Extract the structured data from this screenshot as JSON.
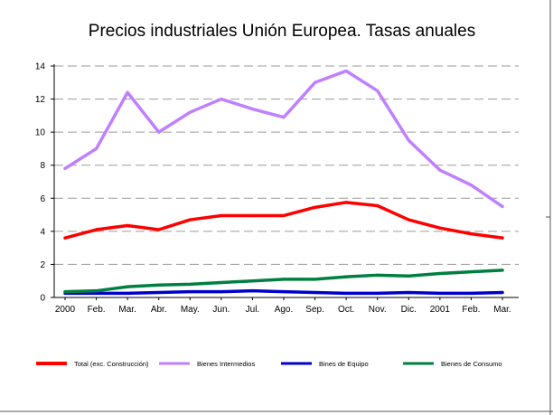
{
  "chart_data": {
    "type": "line",
    "title": "Precios industriales Unión Europea. Tasas anuales",
    "xlabel": "",
    "ylabel": "",
    "categories": [
      "2000",
      "Feb.",
      "Mar.",
      "Abr.",
      "May.",
      "Jun.",
      "Jul.",
      "Ago.",
      "Sep.",
      "Oct.",
      "Nov.",
      "Dic.",
      "2001",
      "Feb.",
      "Mar."
    ],
    "yticks": [
      "0",
      "2",
      "4",
      "6",
      "8",
      "10",
      "12",
      "14"
    ],
    "ylim": [
      0,
      14
    ],
    "grid": "horizontal dashed",
    "legend_position": "bottom",
    "series": [
      {
        "name": "Total (exc. Construcción)",
        "color": "#ff0000",
        "values": [
          3.6,
          4.1,
          4.35,
          4.1,
          4.7,
          4.95,
          4.95,
          4.95,
          5.45,
          5.75,
          5.55,
          4.7,
          4.2,
          3.85,
          3.6
        ]
      },
      {
        "name": "Bienes Intermedios",
        "color": "#bf80ff",
        "values": [
          7.8,
          9.0,
          12.4,
          10.0,
          11.2,
          12.0,
          11.4,
          10.9,
          13.0,
          13.7,
          12.5,
          9.5,
          7.7,
          6.8,
          5.5
        ]
      },
      {
        "name": "Bines de Equipo",
        "color": "#0000cc",
        "values": [
          0.25,
          0.25,
          0.25,
          0.3,
          0.35,
          0.35,
          0.4,
          0.35,
          0.3,
          0.25,
          0.25,
          0.3,
          0.25,
          0.25,
          0.3
        ]
      },
      {
        "name": "Bienes de Consumo",
        "color": "#008040",
        "values": [
          0.35,
          0.4,
          0.65,
          0.75,
          0.8,
          0.9,
          1.0,
          1.1,
          1.1,
          1.25,
          1.35,
          1.3,
          1.45,
          1.55,
          1.65
        ]
      }
    ]
  }
}
